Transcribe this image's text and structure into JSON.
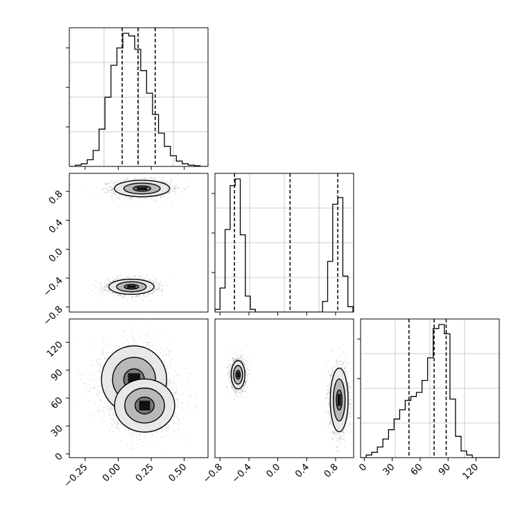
{
  "chart_data": [
    {
      "type": "bar",
      "title": "",
      "xlabel": "",
      "ylabel": "",
      "grid": true,
      "xlim": [
        -0.37,
        0.68
      ],
      "ylim": [
        0,
        1
      ],
      "bin_edges": [
        -0.37,
        -0.325,
        -0.28,
        -0.235,
        -0.19,
        -0.145,
        -0.1,
        -0.055,
        -0.01,
        0.035,
        0.08,
        0.125,
        0.17,
        0.215,
        0.26,
        0.305,
        0.35,
        0.395,
        0.44,
        0.485,
        0.53,
        0.575,
        0.62,
        0.665,
        0.71
      ],
      "counts_relative": [
        0.0,
        0.01,
        0.02,
        0.05,
        0.12,
        0.28,
        0.52,
        0.76,
        0.89,
        1.0,
        0.98,
        0.88,
        0.72,
        0.55,
        0.39,
        0.25,
        0.15,
        0.08,
        0.04,
        0.02,
        0.01,
        0.005,
        0.0,
        0.0
      ],
      "quantiles": [
        0.03,
        0.15,
        0.28
      ]
    },
    {
      "type": "scatter",
      "title": "",
      "xlim": [
        -0.37,
        0.68
      ],
      "ylim": [
        -0.87,
        1.05
      ],
      "ytick_labels": [
        "0.8",
        "0.4",
        "0.0",
        "−0.4",
        "−0.8"
      ],
      "yticks": [
        0.8,
        0.4,
        0.0,
        -0.4,
        -0.8
      ],
      "modes": [
        {
          "center": [
            0.18,
            0.84
          ],
          "spread": [
            0.11,
            0.06
          ]
        },
        {
          "center": [
            0.1,
            -0.52
          ],
          "spread": [
            0.09,
            0.055
          ]
        }
      ],
      "contour_levels": 3
    },
    {
      "type": "bar",
      "title": "",
      "grid": true,
      "xlim": [
        -0.87,
        1.05
      ],
      "ylim": [
        0,
        1
      ],
      "bin_edges": [
        -0.87,
        -0.8,
        -0.73,
        -0.66,
        -0.59,
        -0.52,
        -0.45,
        -0.38,
        -0.31,
        0.62,
        0.69,
        0.76,
        0.83,
        0.9,
        0.97,
        1.04
      ],
      "counts_relative": [
        0.02,
        0.18,
        0.62,
        0.95,
        1.0,
        0.58,
        0.12,
        0.02,
        0.0,
        0.08,
        0.38,
        0.81,
        0.86,
        0.27,
        0.04
      ],
      "quantiles": [
        -0.6,
        0.17,
        0.83
      ]
    },
    {
      "type": "scatter",
      "title": "",
      "xlim": [
        -0.37,
        0.68
      ],
      "ylim": [
        -4,
        145
      ],
      "xtick_labels": [
        "−0.25",
        "0.00",
        "0.25",
        "0.50"
      ],
      "xticks": [
        -0.25,
        0.0,
        0.25,
        0.5
      ],
      "ytick_labels": [
        "120",
        "90",
        "60",
        "30",
        "0"
      ],
      "yticks": [
        120,
        90,
        60,
        30,
        0
      ],
      "modes": [
        {
          "center": [
            0.12,
            80
          ],
          "spread": [
            0.13,
            19
          ]
        },
        {
          "center": [
            0.2,
            52
          ],
          "spread": [
            0.12,
            15
          ]
        }
      ],
      "contour_levels": 3
    },
    {
      "type": "scatter",
      "title": "",
      "xlim": [
        -0.87,
        1.05
      ],
      "ylim": [
        -4,
        145
      ],
      "xtick_labels": [
        "−0.8",
        "−0.4",
        "0.0",
        "0.4",
        "0.8"
      ],
      "xticks": [
        -0.8,
        -0.4,
        0.0,
        0.4,
        0.8
      ],
      "modes": [
        {
          "center": [
            -0.55,
            85
          ],
          "spread": [
            0.05,
            8
          ]
        },
        {
          "center": [
            0.85,
            58
          ],
          "spread": [
            0.065,
            18
          ]
        }
      ],
      "contour_levels": 3
    },
    {
      "type": "bar",
      "title": "",
      "grid": true,
      "xlim": [
        -4,
        145
      ],
      "ylim": [
        0,
        1
      ],
      "xtick_labels": [
        "0",
        "30",
        "60",
        "90",
        "120"
      ],
      "xticks": [
        0,
        30,
        60,
        90,
        120
      ],
      "bin_edges": [
        -4,
        2,
        8,
        14,
        20,
        26,
        32,
        38,
        44,
        50,
        56,
        62,
        68,
        74,
        80,
        86,
        92,
        98,
        104,
        110,
        116,
        122,
        128,
        134,
        140,
        146
      ],
      "counts_relative": [
        0.0,
        0.02,
        0.04,
        0.08,
        0.14,
        0.21,
        0.29,
        0.36,
        0.43,
        0.46,
        0.49,
        0.58,
        0.75,
        0.97,
        1.0,
        0.93,
        0.44,
        0.16,
        0.05,
        0.02,
        0.0,
        0.0,
        0.0,
        0.0,
        0.0
      ],
      "quantiles": [
        48,
        75,
        88
      ]
    }
  ]
}
